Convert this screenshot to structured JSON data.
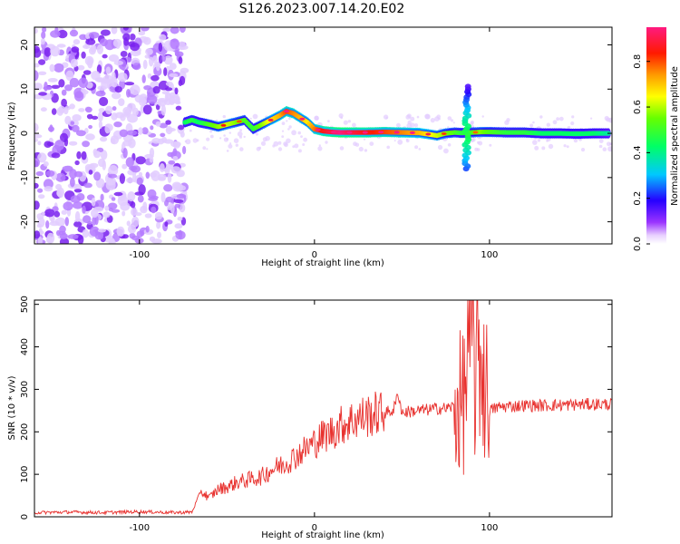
{
  "page_title": "S126.2023.007.14.20.E02",
  "chart_data": [
    {
      "type": "heatmap",
      "xlabel": "Height of straight line (km)",
      "ylabel": "Frequency (Hz)",
      "xlim": [
        -160,
        170
      ],
      "ylim": [
        -25,
        24
      ],
      "x_ticks": [
        -100,
        0,
        100
      ],
      "y_ticks": [
        -20,
        -10,
        0,
        10,
        20
      ],
      "grid": false,
      "noise_region_x": [
        -160,
        -74
      ],
      "ridge": {
        "x": [
          -74,
          -70,
          -66,
          -60,
          -55,
          -50,
          -45,
          -40,
          -35,
          -30,
          -25,
          -20,
          -16,
          -12,
          -8,
          -4,
          0,
          5,
          10,
          15,
          20,
          30,
          40,
          50,
          60,
          70,
          75,
          80,
          84,
          86,
          90,
          95,
          100,
          110,
          120,
          130,
          140,
          150,
          160,
          168
        ],
        "freq_hz": [
          2.5,
          3.0,
          2.5,
          2.0,
          1.5,
          2.0,
          2.5,
          3.0,
          1.0,
          2.0,
          3.0,
          4.0,
          5.0,
          4.5,
          3.5,
          2.5,
          1.0,
          0.5,
          0.3,
          0.2,
          0.2,
          0.2,
          0.3,
          0.2,
          0.1,
          -0.5,
          0.0,
          0.2,
          0.1,
          0.1,
          0.2,
          0.3,
          0.3,
          0.2,
          0.2,
          0.0,
          0.0,
          -0.1,
          0.0,
          0.0
        ],
        "amplitude": [
          0.45,
          0.5,
          0.45,
          0.55,
          0.6,
          0.65,
          0.6,
          0.55,
          0.5,
          0.6,
          0.7,
          0.75,
          0.85,
          0.8,
          0.75,
          0.7,
          0.8,
          0.9,
          0.95,
          1.0,
          0.95,
          0.9,
          0.85,
          0.8,
          0.75,
          0.65,
          0.6,
          0.55,
          0.5,
          0.5,
          0.55,
          0.6,
          0.55,
          0.5,
          0.5,
          0.45,
          0.45,
          0.45,
          0.45,
          0.4
        ]
      },
      "spike": {
        "x": 87,
        "freq_range_hz": [
          -8,
          11
        ]
      },
      "colorbar": {
        "label": "Normalized spectral amplitude",
        "range": [
          0.0,
          0.95
        ],
        "ticks": [
          "0.0",
          "0.2",
          "0.4",
          "0.6",
          "0.8"
        ]
      }
    },
    {
      "type": "line",
      "xlabel": "Height of straight line (km)",
      "ylabel": "SNR (10 * v/v)",
      "xlim": [
        -160,
        170
      ],
      "ylim": [
        0,
        510
      ],
      "x_ticks": [
        -100,
        0,
        100
      ],
      "y_ticks": [
        0,
        100,
        200,
        300,
        400,
        500
      ],
      "grid": false,
      "series": [
        {
          "color": "#e8322f",
          "x": [
            -160,
            -140,
            -120,
            -100,
            -80,
            -70,
            -65,
            -60,
            -55,
            -50,
            -45,
            -40,
            -35,
            -30,
            -25,
            -20,
            -15,
            -10,
            -5,
            0,
            5,
            10,
            15,
            20,
            25,
            30,
            35,
            40,
            45,
            48,
            50,
            55,
            60,
            65,
            70,
            75,
            80,
            85,
            88,
            90,
            92,
            94,
            96,
            98,
            100,
            105,
            110,
            120,
            130,
            140,
            150,
            160,
            170
          ],
          "values": [
            10,
            11,
            10,
            12,
            10,
            11,
            60,
            45,
            65,
            70,
            80,
            85,
            90,
            95,
            110,
            120,
            130,
            145,
            160,
            175,
            190,
            200,
            215,
            225,
            232,
            238,
            242,
            245,
            250,
            290,
            245,
            248,
            250,
            252,
            255,
            255,
            260,
            270,
            380,
            480,
            300,
            420,
            350,
            300,
            250,
            258,
            260,
            262,
            262,
            263,
            264,
            265,
            265
          ]
        }
      ]
    }
  ]
}
